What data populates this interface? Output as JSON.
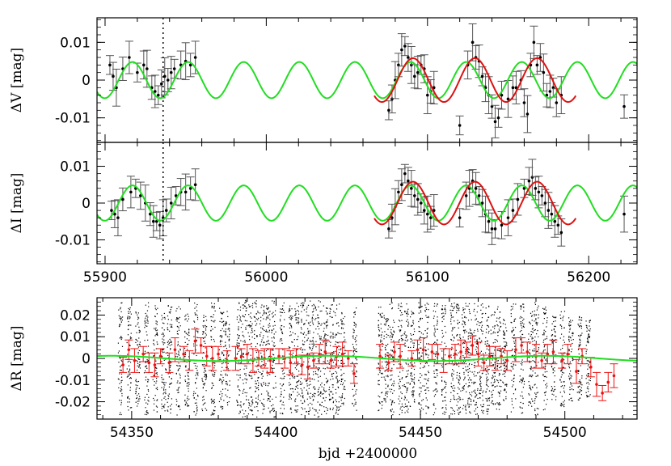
{
  "chart_data": [
    {
      "type": "line",
      "panel": "top",
      "ylabel": "ΔV [mag]",
      "xlabel": "",
      "xlim": [
        55895,
        56230
      ],
      "ylim": [
        -0.0165,
        0.0165
      ],
      "yticks": [
        0.01,
        0,
        -0.01
      ],
      "ytick_labels": [
        "0.01",
        "0",
        "-0.01"
      ],
      "xticks": [
        55900,
        56000,
        56100,
        56200
      ],
      "xtick_labels": [],
      "vline_x": 55936,
      "colors": {
        "observations": "#000000",
        "sine_fit": "#22dd22",
        "local_fit": "#dd1111"
      },
      "series": [
        {
          "name": "observations",
          "style": "points-with-errorbars",
          "x": [
            55903,
            55905,
            55907,
            55911,
            55915,
            55920,
            55924,
            55926,
            55929,
            55931,
            55933,
            55935,
            55937,
            55939,
            55941,
            55943,
            55947,
            55950,
            55953,
            55956,
            56076,
            56078,
            56080,
            56082,
            56084,
            56086,
            56088,
            56090,
            56092,
            56094,
            56096,
            56098,
            56100,
            56102,
            56104,
            56120,
            56125,
            56128,
            56130,
            56132,
            56134,
            56136,
            56138,
            56140,
            56142,
            56144,
            56146,
            56150,
            56153,
            56155,
            56158,
            56160,
            56162,
            56164,
            56166,
            56168,
            56170,
            56172,
            56174,
            56176,
            56178,
            56180,
            56183,
            56222
          ],
          "y": [
            0.004,
            0.001,
            -0.002,
            0.003,
            0.006,
            0.002,
            0.004,
            0.003,
            -0.002,
            -0.003,
            -0.004,
            -0.001,
            0.001,
            0.0,
            0.002,
            0.003,
            0.004,
            0.005,
            0.004,
            0.006,
            -0.008,
            -0.005,
            0.0,
            0.004,
            0.008,
            0.009,
            0.006,
            0.004,
            0.001,
            0.002,
            0.004,
            0.003,
            -0.004,
            -0.003,
            -0.002,
            -0.012,
            0.004,
            0.01,
            0.006,
            0.005,
            0.001,
            -0.002,
            -0.004,
            -0.007,
            -0.011,
            -0.01,
            -0.004,
            -0.005,
            -0.002,
            -0.002,
            0.0,
            -0.006,
            -0.009,
            0.004,
            0.01,
            0.004,
            0.006,
            0.002,
            -0.004,
            -0.003,
            -0.002,
            -0.006,
            -0.004,
            -0.007
          ]
        },
        {
          "name": "sine_fit",
          "style": "line",
          "amplitude": 0.0048,
          "period": 34.5,
          "x_peak": 55917.0,
          "offset": 0.0
        },
        {
          "name": "local_fit",
          "style": "line",
          "amplitude": 0.0058,
          "period": 38.5,
          "x_peak": 56091.0,
          "offset": 0.0,
          "x_range": [
            56067,
            56192
          ]
        }
      ]
    },
    {
      "type": "line",
      "panel": "middle",
      "ylabel": "ΔI [mag]",
      "xlabel": "",
      "xlim": [
        55895,
        56230
      ],
      "ylim": [
        -0.0165,
        0.0165
      ],
      "yticks": [
        0.01,
        0,
        -0.01
      ],
      "ytick_labels": [
        "0.01",
        "0",
        "-0.01"
      ],
      "xticks": [
        55900,
        56000,
        56100,
        56200
      ],
      "xtick_labels": [
        "55900",
        "56000",
        "56100",
        "56200"
      ],
      "vline_x": 55936,
      "colors": {
        "observations": "#000000",
        "sine_fit": "#22dd22",
        "local_fit": "#dd1111"
      },
      "series": [
        {
          "name": "observations",
          "style": "points-with-errorbars",
          "x": [
            55904,
            55906,
            55908,
            55911,
            55916,
            55919,
            55922,
            55925,
            55928,
            55930,
            55932,
            55934,
            55936,
            55938,
            55941,
            55944,
            55947,
            55950,
            55953,
            55956,
            56076,
            56078,
            56080,
            56082,
            56084,
            56086,
            56088,
            56090,
            56092,
            56094,
            56096,
            56098,
            56100,
            56102,
            56104,
            56120,
            56124,
            56126,
            56128,
            56130,
            56132,
            56134,
            56136,
            56138,
            56140,
            56142,
            56146,
            56150,
            56153,
            56156,
            56160,
            56163,
            56165,
            56167,
            56169,
            56171,
            56173,
            56175,
            56177,
            56179,
            56181,
            56183,
            56222
          ],
          "y": [
            -0.002,
            -0.003,
            -0.004,
            0.001,
            0.003,
            0.004,
            0.002,
            0.0,
            -0.003,
            -0.005,
            -0.005,
            -0.006,
            -0.004,
            -0.002,
            0.0,
            0.002,
            0.003,
            0.003,
            0.004,
            0.005,
            -0.007,
            -0.004,
            -0.001,
            0.003,
            0.005,
            0.008,
            0.006,
            0.004,
            0.002,
            0.001,
            0.0,
            -0.002,
            -0.003,
            -0.004,
            -0.002,
            -0.004,
            0.002,
            0.004,
            0.006,
            0.004,
            0.002,
            0.0,
            -0.003,
            -0.005,
            -0.007,
            -0.007,
            -0.006,
            -0.004,
            -0.002,
            0.001,
            0.004,
            0.006,
            0.007,
            0.004,
            0.003,
            0.002,
            0.0,
            -0.002,
            -0.003,
            -0.005,
            -0.006,
            -0.008,
            -0.003
          ]
        },
        {
          "name": "sine_fit",
          "style": "line",
          "amplitude": 0.0048,
          "period": 34.5,
          "x_peak": 55917.0,
          "offset": 0.0
        },
        {
          "name": "local_fit",
          "style": "line",
          "amplitude": 0.0058,
          "period": 38.5,
          "x_peak": 56091.0,
          "offset": 0.0,
          "x_range": [
            56067,
            56192
          ]
        }
      ]
    },
    {
      "type": "scatter",
      "panel": "bottom",
      "ylabel": "ΔR [mag]",
      "xlabel": "bjd  +2400000",
      "xlim": [
        54338,
        54525
      ],
      "ylim": [
        -0.028,
        0.028
      ],
      "yticks": [
        0.02,
        0.01,
        0,
        -0.01,
        -0.02
      ],
      "ytick_labels": [
        "0.02",
        "0.01",
        "0",
        "-0.01",
        "-0.02"
      ],
      "xticks": [
        54350,
        54400,
        54450,
        54500
      ],
      "xtick_labels": [
        "54350",
        "54400",
        "54450",
        "54500"
      ],
      "colors": {
        "raw": "#000000",
        "binned": "#ee1111",
        "fit": "#22dd22"
      },
      "series": [
        {
          "name": "raw",
          "style": "dots",
          "columns_x": [
            54346,
            54349,
            54352,
            54355,
            54358,
            54361,
            54363,
            54366,
            54369,
            54372,
            54375,
            54378,
            54381,
            54383,
            54387,
            54389,
            54391,
            54393,
            54395,
            54397,
            54399,
            54402,
            54405,
            54407,
            54409,
            54411,
            54413,
            54415,
            54417,
            54419,
            54421,
            54423,
            54427,
            54436,
            54438,
            54440,
            54443,
            54445,
            54447,
            54450,
            54452,
            54455,
            54458,
            54461,
            54463,
            54465,
            54467,
            54469,
            54471,
            54473,
            54475,
            54477,
            54479,
            54482,
            54485,
            54488,
            54490,
            54493,
            54496,
            54499,
            54502,
            54505,
            54508
          ],
          "column_spread": [
            0.026,
            0.024,
            0.022,
            0.026,
            0.025,
            0.024,
            0.026,
            0.026,
            0.022,
            0.026,
            0.024,
            0.026,
            0.024,
            0.022,
            0.026,
            0.027,
            0.026,
            0.027,
            0.026,
            0.025,
            0.027,
            0.026,
            0.025,
            0.026,
            0.026,
            0.027,
            0.026,
            0.027,
            0.026,
            0.025,
            0.026,
            0.022,
            0.024,
            0.024,
            0.02,
            0.026,
            0.026,
            0.026,
            0.022,
            0.026,
            0.026,
            0.026,
            0.026,
            0.026,
            0.026,
            0.026,
            0.026,
            0.026,
            0.026,
            0.026,
            0.022,
            0.024,
            0.02,
            0.026,
            0.026,
            0.022,
            0.026,
            0.024,
            0.02,
            0.022,
            0.02,
            0.02,
            0.018
          ]
        },
        {
          "name": "binned",
          "style": "points-with-errorbars",
          "x": [
            54347,
            54349,
            54351,
            54354,
            54356,
            54358,
            54360,
            54363,
            54365,
            54368,
            54370,
            54372,
            54374,
            54376,
            54378,
            54380,
            54383,
            54386,
            54388,
            54390,
            54392,
            54394,
            54396,
            54398,
            54401,
            54403,
            54405,
            54407,
            54409,
            54411,
            54413,
            54415,
            54417,
            54419,
            54421,
            54423,
            54425,
            54427,
            54436,
            54439,
            54441,
            54443,
            54447,
            54449,
            54451,
            54454,
            54456,
            54458,
            54460,
            54462,
            54464,
            54466,
            54468,
            54470,
            54472,
            54474,
            54476,
            54478,
            54480,
            54483,
            54485,
            54487,
            54490,
            54492,
            54494,
            54496,
            54499,
            54501,
            54504,
            54506,
            54509,
            54511,
            54513,
            54515,
            54517
          ],
          "y": [
            -0.003,
            0.004,
            -0.001,
            0.002,
            -0.002,
            -0.003,
            0.001,
            -0.002,
            0.004,
            0.002,
            -0.001,
            0.008,
            0.006,
            0.001,
            0.0,
            0.002,
            -0.001,
            0.0,
            0.001,
            0.002,
            -0.001,
            0.0,
            0.0,
            -0.001,
            0.001,
            0.0,
            -0.002,
            0.001,
            -0.003,
            -0.004,
            -0.001,
            0.002,
            0.003,
            -0.001,
            0.001,
            0.002,
            0.0,
            -0.007,
            0.001,
            -0.002,
            0.003,
            0.001,
            0.0,
            0.004,
            0.004,
            0.003,
            0.002,
            -0.001,
            0.001,
            0.002,
            0.003,
            0.004,
            0.006,
            0.002,
            -0.002,
            0.001,
            0.0,
            0.001,
            -0.001,
            0.004,
            0.006,
            0.003,
            0.001,
            -0.001,
            0.002,
            0.003,
            -0.001,
            0.002,
            -0.006,
            0.001,
            -0.004,
            -0.012,
            -0.016,
            -0.011,
            -0.008
          ]
        },
        {
          "name": "fit",
          "style": "line",
          "amplitude": 0.0012,
          "period": 75.0,
          "x_peak": 54343.0,
          "offset": 0.0
        }
      ]
    }
  ]
}
